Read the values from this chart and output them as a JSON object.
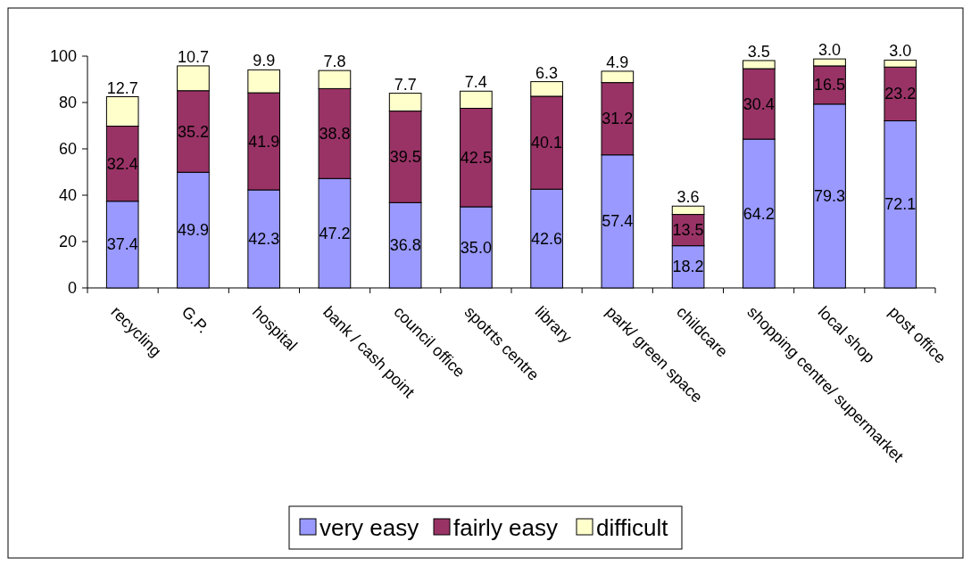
{
  "chart_data": {
    "type": "bar",
    "stacked": true,
    "categories": [
      "recycling",
      "G.P.",
      "hospital",
      "bank / cash point",
      "council office",
      "spotrts centre",
      "library",
      "park/ green space",
      "childcare",
      "shopping centre/ supermarket",
      "local shop",
      "post office"
    ],
    "series": [
      {
        "name": "very easy",
        "color": "#9999ff",
        "values": [
          37.4,
          49.9,
          42.3,
          47.2,
          36.8,
          35.0,
          42.6,
          57.4,
          18.2,
          64.2,
          79.3,
          72.1
        ],
        "value_labels": [
          "37.4",
          "49.9",
          "42.3",
          "47.2",
          "36.8",
          "35.0",
          "42.6",
          "57.4",
          "18.2",
          "64.2",
          "79.3",
          "72.1"
        ]
      },
      {
        "name": "fairly easy",
        "color": "#993366",
        "values": [
          32.4,
          35.2,
          41.9,
          38.8,
          39.5,
          42.5,
          40.1,
          31.2,
          13.5,
          30.4,
          16.5,
          23.2
        ],
        "value_labels": [
          "32.4",
          "35.2",
          "41.9",
          "38.8",
          "39.5",
          "42.5",
          "40.1",
          "31.2",
          "13.5",
          "30.4",
          "16.5",
          "23.2"
        ]
      },
      {
        "name": "difficult",
        "color": "#ffffcc",
        "values": [
          12.7,
          10.7,
          9.9,
          7.8,
          7.7,
          7.4,
          6.3,
          4.9,
          3.6,
          3.5,
          3.0,
          3.0
        ],
        "value_labels": [
          "12.7",
          "10.7",
          "9.9",
          "7.8",
          "7.7",
          "7.4",
          "6.3",
          "4.9",
          "3.6",
          "3.5",
          "3.0",
          "3.0"
        ]
      }
    ],
    "ylim": [
      0,
      100
    ],
    "yticks": [
      0,
      20,
      40,
      60,
      80,
      100
    ],
    "grid": false,
    "legend": "bottom"
  }
}
